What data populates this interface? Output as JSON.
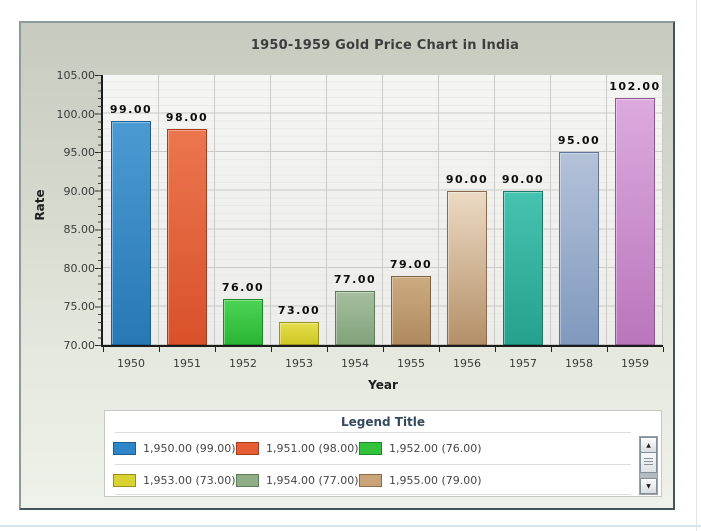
{
  "chart_data": {
    "type": "bar",
    "title": "1950-1959 Gold Price Chart in India",
    "xlabel": "Year",
    "ylabel": "Rate",
    "ylim": [
      70,
      105
    ],
    "grid": true,
    "y_ticks": [
      "105.00",
      "100.00",
      "95.00",
      "90.00",
      "85.00",
      "80.00",
      "75.00",
      "70.00"
    ],
    "categories": [
      "1950",
      "1951",
      "1952",
      "1953",
      "1954",
      "1955",
      "1956",
      "1957",
      "1958",
      "1959"
    ],
    "values": [
      99,
      98,
      76,
      73,
      77,
      79,
      90,
      90,
      95,
      102
    ],
    "value_labels": [
      "99.00",
      "98.00",
      "76.00",
      "73.00",
      "77.00",
      "79.00",
      "90.00",
      "90.00",
      "95.00",
      "102.00"
    ],
    "bar_colors": [
      {
        "top": "#4b9ad2",
        "bottom": "#2878b6",
        "border": "#1e5f93"
      },
      {
        "top": "#ec764e",
        "bottom": "#d8512b",
        "border": "#a53c1e"
      },
      {
        "top": "#4cd355",
        "bottom": "#2ab634",
        "border": "#1e8a27"
      },
      {
        "top": "#e4df4c",
        "bottom": "#cfc826",
        "border": "#98921c"
      },
      {
        "top": "#a6bf9f",
        "bottom": "#82a37b",
        "border": "#5e7c58"
      },
      {
        "top": "#ccab81",
        "bottom": "#b08a5e",
        "border": "#7d6142"
      },
      {
        "top": "#ecdac3",
        "bottom": "#b4906a",
        "border": "#8a6a4a"
      },
      {
        "top": "#46c3b0",
        "bottom": "#25a18e",
        "border": "#1a7866"
      },
      {
        "top": "#b4c2d9",
        "bottom": "#8099bd",
        "border": "#5e7599"
      },
      {
        "top": "#dcaade",
        "bottom": "#ba76bc",
        "border": "#8e5790"
      }
    ],
    "legend_position": "bottom"
  },
  "legend": {
    "title": "Legend Title",
    "items": [
      {
        "label": "1,950.00 (99.00)",
        "color": "#2e86c6",
        "border": "#1e5f93"
      },
      {
        "label": "1,951.00 (98.00)",
        "color": "#e55c35",
        "border": "#a53c1e"
      },
      {
        "label": "1,952.00 (76.00)",
        "color": "#30c33b",
        "border": "#1e8a27"
      },
      {
        "label": "1,953.00 (73.00)",
        "color": "#d8d232",
        "border": "#98921c"
      },
      {
        "label": "1,954.00 (77.00)",
        "color": "#8fae87",
        "border": "#5e7c58"
      },
      {
        "label": "1,955.00 (79.00)",
        "color": "#c9a478",
        "border": "#8a6a4a"
      }
    ],
    "scroll_up_icon": "▲",
    "scroll_down_icon": "▼"
  }
}
